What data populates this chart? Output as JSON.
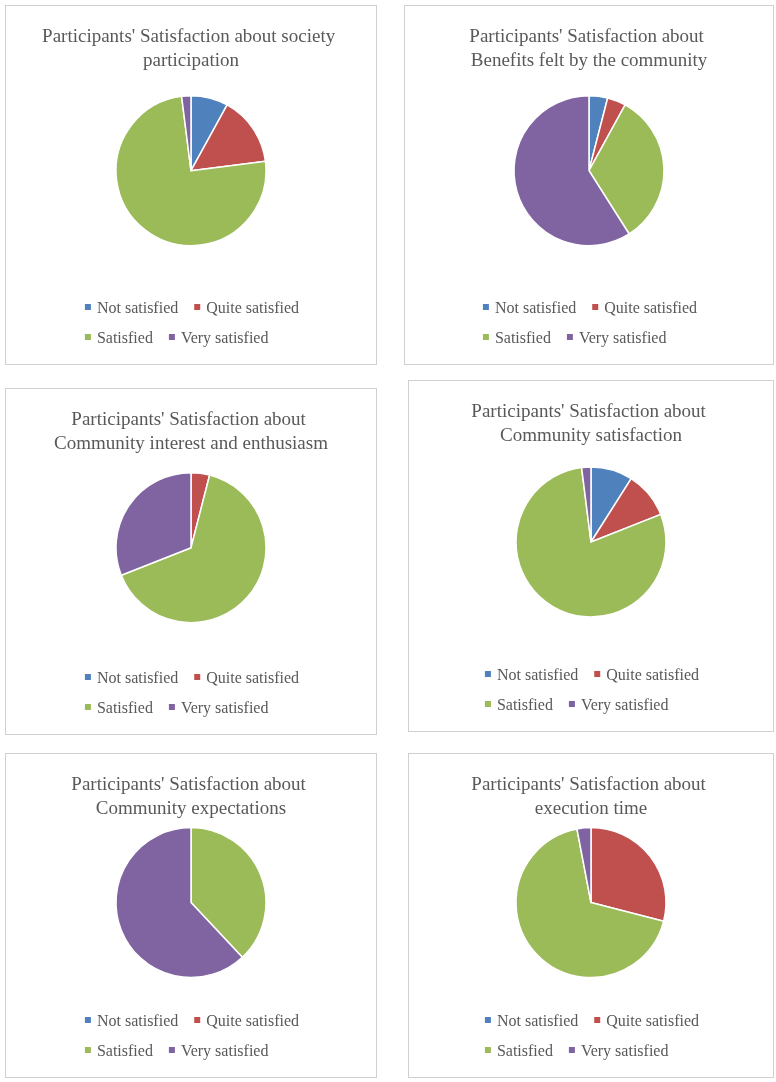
{
  "chart_data": [
    {
      "type": "pie",
      "title": "Participants' Satisfaction about society participation",
      "categories": [
        "Not satisfied",
        "Quite satisfied",
        "Satisfied",
        "Very satisfied"
      ],
      "values": [
        8,
        15,
        75,
        2
      ],
      "colors": [
        "#4f81bd",
        "#c0504d",
        "#9bbb59",
        "#8064a2"
      ],
      "legend": "bottom"
    },
    {
      "type": "pie",
      "title": "Participants' Satisfaction about Benefits felt by the community",
      "categories": [
        "Not satisfied",
        "Quite satisfied",
        "Satisfied",
        "Very satisfied"
      ],
      "values": [
        4,
        4,
        33,
        59
      ],
      "colors": [
        "#4f81bd",
        "#c0504d",
        "#9bbb59",
        "#8064a2"
      ],
      "legend": "bottom"
    },
    {
      "type": "pie",
      "title": "Participants' Satisfaction about Community interest and enthusiasm",
      "categories": [
        "Not satisfied",
        "Quite satisfied",
        "Satisfied",
        "Very satisfied"
      ],
      "values": [
        0,
        4,
        65,
        31
      ],
      "colors": [
        "#4f81bd",
        "#c0504d",
        "#9bbb59",
        "#8064a2"
      ],
      "legend": "bottom"
    },
    {
      "type": "pie",
      "title": "Participants' Satisfaction about Community satisfaction",
      "categories": [
        "Not satisfied",
        "Quite satisfied",
        "Satisfied",
        "Very satisfied"
      ],
      "values": [
        9,
        10,
        79,
        2
      ],
      "colors": [
        "#4f81bd",
        "#c0504d",
        "#9bbb59",
        "#8064a2"
      ],
      "legend": "bottom"
    },
    {
      "type": "pie",
      "title": "Participants' Satisfaction about Community expectations",
      "categories": [
        "Not satisfied",
        "Quite satisfied",
        "Satisfied",
        "Very satisfied"
      ],
      "values": [
        0,
        0,
        38,
        62
      ],
      "colors": [
        "#4f81bd",
        "#c0504d",
        "#9bbb59",
        "#8064a2"
      ],
      "legend": "bottom"
    },
    {
      "type": "pie",
      "title": "Participants' Satisfaction about execution time",
      "categories": [
        "Not satisfied",
        "Quite satisfied",
        "Satisfied",
        "Very satisfied"
      ],
      "values": [
        0,
        29,
        68,
        3
      ],
      "colors": [
        "#4f81bd",
        "#c0504d",
        "#9bbb59",
        "#8064a2"
      ],
      "legend": "bottom"
    }
  ]
}
